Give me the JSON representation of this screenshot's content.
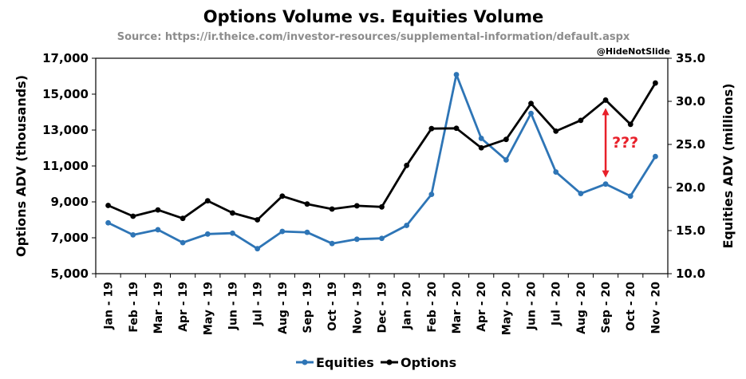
{
  "chart_data": {
    "type": "line",
    "title": "Options Volume vs. Equities Volume",
    "subtitle": "Source: https://ir.theice.com/investor-resources/supplemental-information/default.aspx",
    "handle": "@HideNotSlide",
    "categories": [
      "Jan - 19",
      "Feb - 19",
      "Mar - 19",
      "Apr - 19",
      "May - 19",
      "Jun - 19",
      "Jul - 19",
      "Aug - 19",
      "Sep - 19",
      "Oct - 19",
      "Nov - 19",
      "Dec - 19",
      "Jan - 20",
      "Feb - 20",
      "Mar - 20",
      "Apr - 20",
      "May - 20",
      "Jun - 20",
      "Jul - 20",
      "Aug - 20",
      "Sep - 20",
      "Oct - 20",
      "Nov - 20"
    ],
    "y_left": {
      "label": "Options ADV (thousands)",
      "min": 5000,
      "max": 17000,
      "step": 2000,
      "tick_labels": [
        "5,000",
        "7,000",
        "9,000",
        "11,000",
        "13,000",
        "15,000",
        "17,000"
      ]
    },
    "y_right": {
      "label": "Equities ADV (millions)",
      "min": 10,
      "max": 35,
      "step": 5,
      "tick_labels": [
        "10.0",
        "15.0",
        "20.0",
        "25.0",
        "30.0",
        "35.0"
      ]
    },
    "series": [
      {
        "name": "Equities",
        "axis": "right",
        "color": "#2e75b6",
        "values": [
          15.9,
          14.5,
          15.1,
          13.6,
          14.6,
          14.7,
          12.9,
          14.9,
          14.8,
          13.5,
          14.0,
          14.1,
          15.6,
          19.2,
          33.1,
          25.7,
          23.2,
          28.6,
          21.8,
          19.3,
          20.4,
          19.0,
          23.6
        ]
      },
      {
        "name": "Options",
        "axis": "left",
        "color": "#000000",
        "values": [
          8800,
          8200,
          8550,
          8080,
          9060,
          8380,
          8000,
          9320,
          8880,
          8600,
          8780,
          8720,
          11030,
          13080,
          13100,
          12010,
          12480,
          14480,
          12940,
          13540,
          14670,
          13320,
          15620
        ]
      }
    ],
    "annotation": {
      "text": "???",
      "color": "#e8202a"
    },
    "legend_position": "bottom",
    "grid": false
  }
}
